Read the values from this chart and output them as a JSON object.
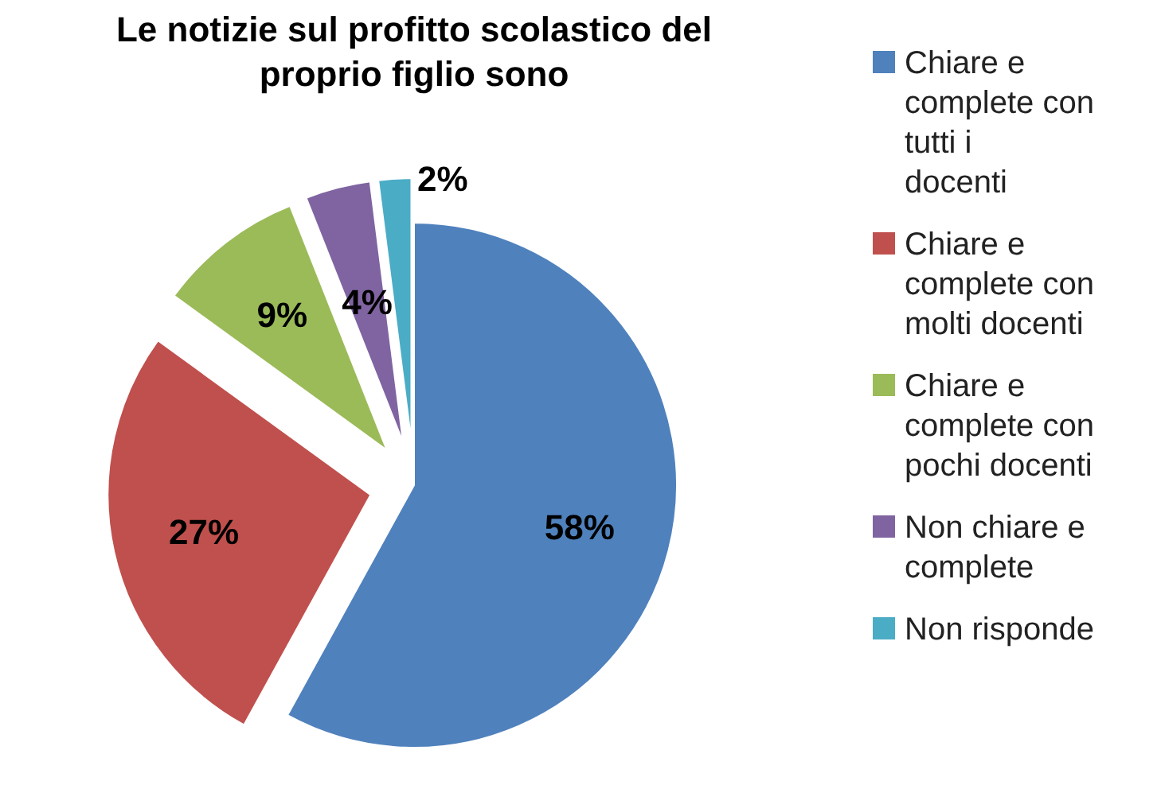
{
  "chart_data": {
    "type": "pie",
    "title": "Le notizie sul profitto scolastico del proprio figlio sono",
    "categories": [
      "Chiare e complete con tutti i docenti",
      "Chiare e complete con molti docenti",
      "Chiare e complete con pochi docenti",
      "Non chiare e complete",
      "Non risponde"
    ],
    "values": [
      58,
      27,
      9,
      4,
      2
    ],
    "colors": [
      "#4f81bd",
      "#c0504d",
      "#9bbb59",
      "#8064a2",
      "#4bacc6"
    ],
    "value_labels": [
      "58%",
      "27%",
      "9%",
      "4%",
      "2%"
    ],
    "legend": "right"
  }
}
